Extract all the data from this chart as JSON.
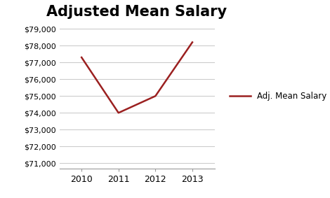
{
  "title": "Adjusted Mean Salary",
  "title_fontsize": 15,
  "title_fontweight": "bold",
  "years": [
    2010,
    2011,
    2012,
    2013
  ],
  "salaries": [
    77300,
    74000,
    75000,
    78200
  ],
  "line_color": "#9B2020",
  "line_width": 1.8,
  "legend_label": "Adj. Mean Salary",
  "ylim_min": 71000,
  "ylim_max": 79000,
  "ytick_step": 1000,
  "background_color": "#ffffff",
  "grid_color": "#cccccc",
  "spine_color": "#999999",
  "tick_fontsize": 8,
  "xtick_fontsize": 9
}
